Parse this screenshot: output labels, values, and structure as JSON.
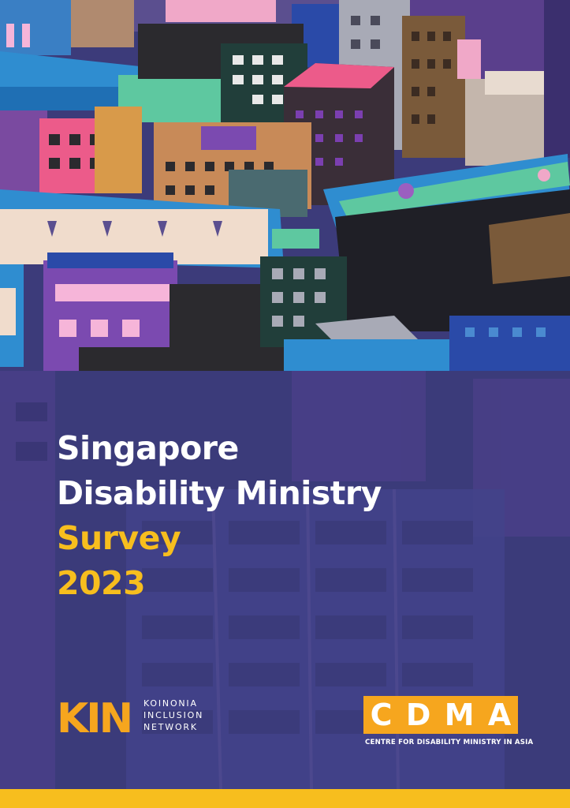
{
  "title": {
    "line1": "Singapore",
    "line2": "Disability Ministry",
    "line3": "Survey",
    "line4": "2023"
  },
  "kin_logo": {
    "mark": "KIN",
    "lines": [
      "KOINONIA",
      "INCLUSION",
      "NETWORK"
    ]
  },
  "cdma_logo": {
    "letters": [
      "C",
      "D",
      "M",
      "A"
    ],
    "subtitle": "CENTRE FOR DISABILITY MINISTRY IN ASIA"
  },
  "colors": {
    "panel_blue": "#3b3b7a",
    "title_white": "#ffffff",
    "title_yellow": "#f7be1e",
    "kin_orange": "#f6a61e",
    "cdma_orange": "#f6a61e",
    "bottom_bar": "#f7be1e"
  }
}
